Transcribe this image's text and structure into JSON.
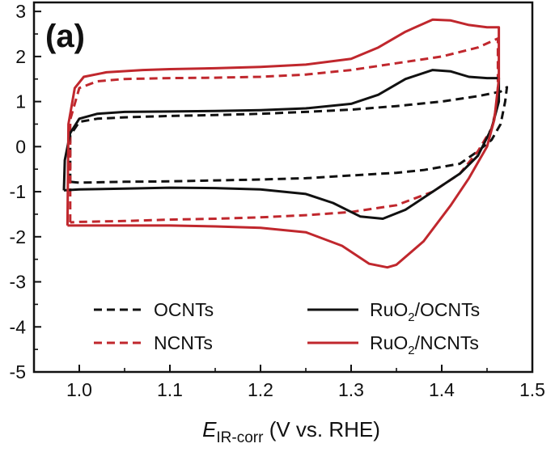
{
  "chart_data": {
    "type": "line",
    "panel_label": "(a)",
    "xlabel": {
      "symbol": "E",
      "subscript": "IR-corr",
      "rest": " (V vs. RHE)"
    },
    "ylabel": "",
    "xlim": [
      0.95,
      1.5
    ],
    "ylim": [
      -5,
      3.2
    ],
    "xticks": [
      "1.0",
      "1.1",
      "1.2",
      "1.3",
      "1.4",
      "1.5"
    ],
    "yticks": [
      "3",
      "2",
      "1",
      "0",
      "-1",
      "-2",
      "-3",
      "-4",
      "-5"
    ],
    "grid": false,
    "legend": {
      "placement": "bottom"
    },
    "series": [
      {
        "name": "OCNTs",
        "color": "#111111",
        "dash": true,
        "points": [
          [
            0.99,
            -0.78
          ],
          [
            0.99,
            0.25
          ],
          [
            1.0,
            0.55
          ],
          [
            1.02,
            0.62
          ],
          [
            1.05,
            0.65
          ],
          [
            1.1,
            0.68
          ],
          [
            1.15,
            0.7
          ],
          [
            1.2,
            0.73
          ],
          [
            1.25,
            0.77
          ],
          [
            1.3,
            0.82
          ],
          [
            1.35,
            0.9
          ],
          [
            1.4,
            1.0
          ],
          [
            1.44,
            1.12
          ],
          [
            1.465,
            1.22
          ],
          [
            1.472,
            1.32
          ],
          [
            1.47,
            1.0
          ],
          [
            1.465,
            0.5
          ],
          [
            1.455,
            0.15
          ],
          [
            1.44,
            -0.1
          ],
          [
            1.42,
            -0.38
          ],
          [
            1.38,
            -0.52
          ],
          [
            1.35,
            -0.58
          ],
          [
            1.3,
            -0.64
          ],
          [
            1.25,
            -0.7
          ],
          [
            1.2,
            -0.73
          ],
          [
            1.15,
            -0.75
          ],
          [
            1.1,
            -0.77
          ],
          [
            1.05,
            -0.78
          ],
          [
            1.0,
            -0.8
          ],
          [
            0.99,
            -0.78
          ]
        ]
      },
      {
        "name": "NCNTs",
        "color": "#c0272d",
        "dash": true,
        "points": [
          [
            0.99,
            -1.68
          ],
          [
            0.99,
            0.6
          ],
          [
            1.0,
            1.3
          ],
          [
            1.02,
            1.45
          ],
          [
            1.05,
            1.5
          ],
          [
            1.1,
            1.52
          ],
          [
            1.15,
            1.53
          ],
          [
            1.2,
            1.55
          ],
          [
            1.25,
            1.6
          ],
          [
            1.3,
            1.7
          ],
          [
            1.35,
            1.85
          ],
          [
            1.4,
            2.0
          ],
          [
            1.44,
            2.2
          ],
          [
            1.462,
            2.4
          ],
          [
            1.462,
            1.0
          ],
          [
            1.455,
            0.4
          ],
          [
            1.44,
            -0.1
          ],
          [
            1.42,
            -0.6
          ],
          [
            1.39,
            -1.0
          ],
          [
            1.35,
            -1.3
          ],
          [
            1.3,
            -1.45
          ],
          [
            1.25,
            -1.52
          ],
          [
            1.2,
            -1.57
          ],
          [
            1.15,
            -1.6
          ],
          [
            1.1,
            -1.62
          ],
          [
            1.05,
            -1.65
          ],
          [
            1.0,
            -1.67
          ],
          [
            0.99,
            -1.68
          ]
        ]
      },
      {
        "name": "RuO2/OCNTs",
        "color": "#111111",
        "dash": false,
        "points": [
          [
            0.983,
            -0.97
          ],
          [
            0.984,
            -0.3
          ],
          [
            0.99,
            0.3
          ],
          [
            1.0,
            0.62
          ],
          [
            1.02,
            0.73
          ],
          [
            1.05,
            0.77
          ],
          [
            1.1,
            0.78
          ],
          [
            1.15,
            0.79
          ],
          [
            1.2,
            0.81
          ],
          [
            1.25,
            0.85
          ],
          [
            1.3,
            0.95
          ],
          [
            1.33,
            1.15
          ],
          [
            1.36,
            1.5
          ],
          [
            1.39,
            1.7
          ],
          [
            1.41,
            1.67
          ],
          [
            1.43,
            1.55
          ],
          [
            1.45,
            1.52
          ],
          [
            1.463,
            1.52
          ],
          [
            1.463,
            1.0
          ],
          [
            1.455,
            0.4
          ],
          [
            1.44,
            -0.2
          ],
          [
            1.42,
            -0.6
          ],
          [
            1.39,
            -1.0
          ],
          [
            1.36,
            -1.4
          ],
          [
            1.335,
            -1.6
          ],
          [
            1.31,
            -1.55
          ],
          [
            1.28,
            -1.25
          ],
          [
            1.25,
            -1.05
          ],
          [
            1.2,
            -0.95
          ],
          [
            1.15,
            -0.92
          ],
          [
            1.1,
            -0.91
          ],
          [
            1.05,
            -0.93
          ],
          [
            1.0,
            -0.95
          ],
          [
            0.983,
            -0.97
          ]
        ]
      },
      {
        "name": "RuO2/NCNTs",
        "color": "#c0272d",
        "dash": false,
        "points": [
          [
            0.987,
            -1.75
          ],
          [
            0.988,
            0.5
          ],
          [
            0.995,
            1.3
          ],
          [
            1.005,
            1.55
          ],
          [
            1.03,
            1.65
          ],
          [
            1.07,
            1.7
          ],
          [
            1.1,
            1.72
          ],
          [
            1.15,
            1.74
          ],
          [
            1.2,
            1.77
          ],
          [
            1.25,
            1.82
          ],
          [
            1.3,
            1.95
          ],
          [
            1.33,
            2.2
          ],
          [
            1.36,
            2.55
          ],
          [
            1.39,
            2.82
          ],
          [
            1.41,
            2.8
          ],
          [
            1.43,
            2.7
          ],
          [
            1.45,
            2.65
          ],
          [
            1.463,
            2.65
          ],
          [
            1.463,
            1.5
          ],
          [
            1.458,
            0.6
          ],
          [
            1.45,
            0.0
          ],
          [
            1.43,
            -0.7
          ],
          [
            1.41,
            -1.3
          ],
          [
            1.38,
            -2.1
          ],
          [
            1.35,
            -2.62
          ],
          [
            1.34,
            -2.68
          ],
          [
            1.32,
            -2.6
          ],
          [
            1.29,
            -2.2
          ],
          [
            1.25,
            -1.9
          ],
          [
            1.2,
            -1.8
          ],
          [
            1.15,
            -1.77
          ],
          [
            1.1,
            -1.75
          ],
          [
            1.05,
            -1.75
          ],
          [
            1.0,
            -1.75
          ],
          [
            0.987,
            -1.75
          ]
        ]
      }
    ]
  },
  "legend_items": {
    "l1": {
      "text": "OCNTs"
    },
    "l2": {
      "text": "NCNTs"
    },
    "l3": {
      "pre": "RuO",
      "sub": "2",
      "post": "/OCNTs"
    },
    "l4": {
      "pre": "RuO",
      "sub": "2",
      "post": "/NCNTs"
    }
  }
}
